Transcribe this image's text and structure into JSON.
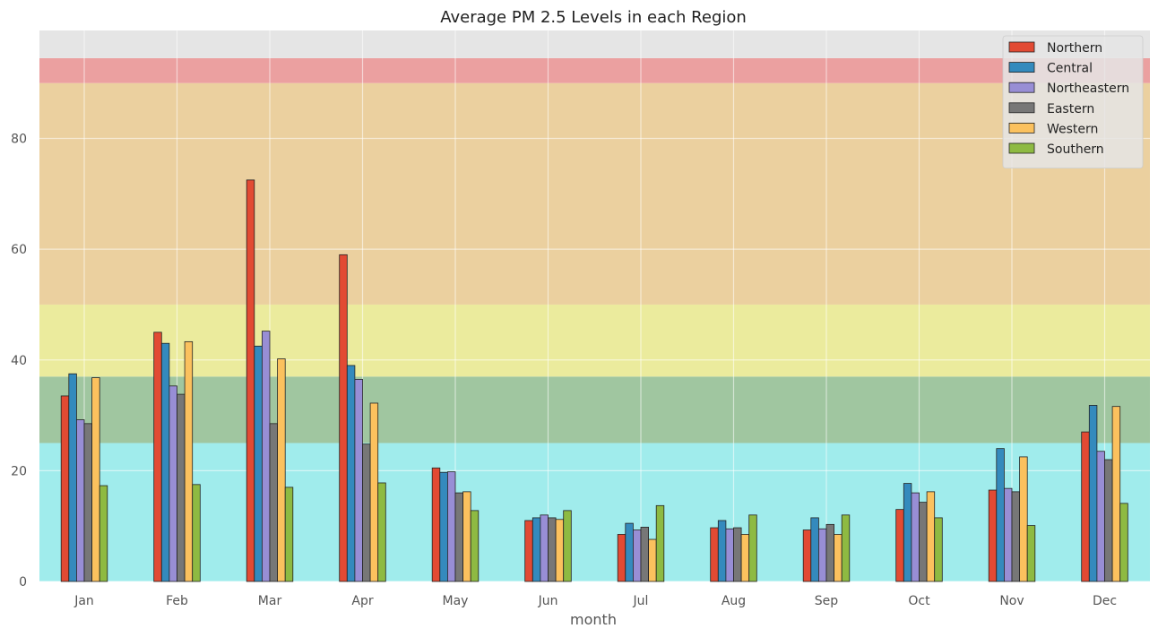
{
  "chart_data": {
    "type": "bar",
    "title": "Average PM 2.5 Levels in each Region",
    "xlabel": "month",
    "ylabel": "",
    "ylim": [
      0,
      99.5
    ],
    "yticks": [
      0,
      20,
      40,
      60,
      80
    ],
    "grid": true,
    "legend_position": "top-right",
    "categories": [
      "Jan",
      "Feb",
      "Mar",
      "Apr",
      "May",
      "Jun",
      "Jul",
      "Aug",
      "Sep",
      "Oct",
      "Nov",
      "Dec"
    ],
    "series": [
      {
        "name": "Northern",
        "color": "#e24a33",
        "values": [
          33.5,
          45.0,
          72.5,
          59.0,
          20.5,
          11.0,
          8.5,
          9.7,
          9.3,
          13.0,
          16.5,
          27.0
        ]
      },
      {
        "name": "Central",
        "color": "#348abd",
        "values": [
          37.5,
          43.0,
          42.5,
          39.0,
          19.7,
          11.5,
          10.5,
          11.0,
          11.5,
          17.7,
          24.0,
          31.8
        ]
      },
      {
        "name": "Northeastern",
        "color": "#988ed5",
        "values": [
          29.2,
          35.3,
          45.2,
          36.5,
          19.8,
          12.0,
          9.3,
          9.5,
          9.5,
          16.0,
          16.8,
          23.5
        ]
      },
      {
        "name": "Eastern",
        "color": "#777777",
        "values": [
          28.5,
          33.8,
          28.5,
          24.8,
          16.0,
          11.5,
          9.8,
          9.7,
          10.3,
          14.3,
          16.2,
          22.0
        ]
      },
      {
        "name": "Western",
        "color": "#fbc15e",
        "values": [
          36.8,
          43.3,
          40.2,
          32.2,
          16.2,
          11.2,
          7.6,
          8.5,
          8.5,
          16.2,
          22.5,
          31.6
        ]
      },
      {
        "name": "Southern",
        "color": "#8eba42",
        "values": [
          17.3,
          17.5,
          17.0,
          17.8,
          12.8,
          12.8,
          13.7,
          12.0,
          12.0,
          11.5,
          10.1,
          14.1
        ]
      }
    ],
    "bands": [
      {
        "from": 0,
        "to": 25,
        "color": "#a0ecec"
      },
      {
        "from": 25,
        "to": 37,
        "color": "#a0c6a0"
      },
      {
        "from": 37,
        "to": 50,
        "color": "#ebeb9d"
      },
      {
        "from": 50,
        "to": 90,
        "color": "#ebd09f"
      },
      {
        "from": 90,
        "to": 94.5,
        "color": "#eba0a0"
      },
      {
        "from": 94.5,
        "to": 99.5,
        "color": "#e5e5e5"
      }
    ]
  }
}
